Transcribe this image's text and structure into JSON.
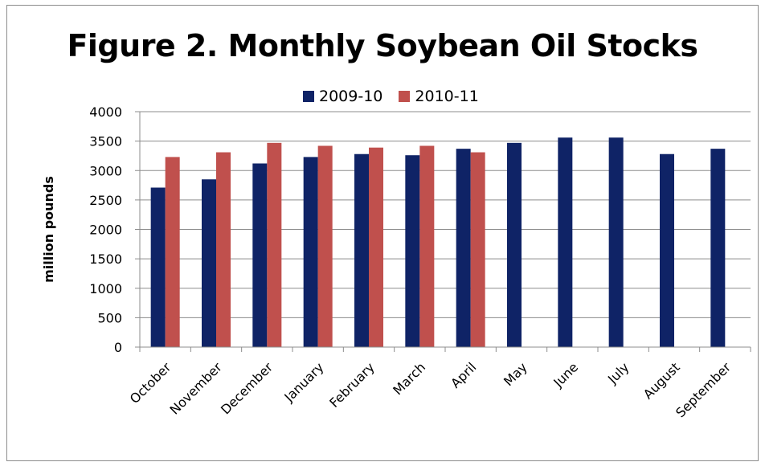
{
  "chart_data": {
    "type": "bar",
    "title": "Figure 2. Monthly Soybean Oil Stocks",
    "xlabel": "",
    "ylabel": "million pounds",
    "ylim": [
      0,
      4000
    ],
    "yticks": [
      0,
      500,
      1000,
      1500,
      2000,
      2500,
      3000,
      3500,
      4000
    ],
    "categories": [
      "October",
      "November",
      "December",
      "January",
      "February",
      "March",
      "April",
      "May",
      "June",
      "July",
      "August",
      "September"
    ],
    "series": [
      {
        "name": "2009-10",
        "color": "#0f2366",
        "values": [
          2710,
          2850,
          3120,
          3230,
          3280,
          3260,
          3370,
          3470,
          3560,
          3560,
          3280,
          3370
        ]
      },
      {
        "name": "2010-11",
        "color": "#c0504d",
        "values": [
          3230,
          3310,
          3470,
          3420,
          3390,
          3420,
          3310,
          null,
          null,
          null,
          null,
          null
        ]
      }
    ],
    "grid": true,
    "legend_position": "top"
  }
}
